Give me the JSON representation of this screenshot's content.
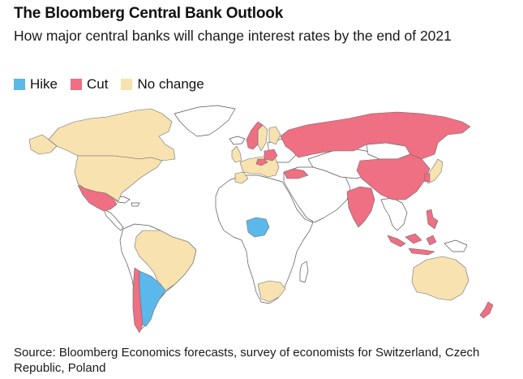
{
  "title": "The Bloomberg Central Bank Outlook",
  "subtitle": "How major central banks will change interest rates by the end of 2021",
  "legend": [
    {
      "label": "Hike",
      "color": "#5bb8ea"
    },
    {
      "label": "Cut",
      "color": "#ef6f83"
    },
    {
      "label": "No change",
      "color": "#f7e2b0"
    }
  ],
  "colors": {
    "hike": "#5bb8ea",
    "cut": "#ef6f83",
    "no_change": "#f7e2b0",
    "not_covered": "#ffffff"
  },
  "countries": {
    "hike": [
      "Argentina",
      "Nigeria"
    ],
    "cut": [
      "Mexico",
      "Chile",
      "Russia",
      "Turkey",
      "China",
      "India",
      "Indonesia",
      "Philippines",
      "South Korea",
      "New Zealand",
      "Norway",
      "Poland",
      "Czech Republic"
    ],
    "no_change": [
      "Canada",
      "United States",
      "Brazil",
      "Euro Area",
      "United Kingdom",
      "Sweden",
      "Switzerland",
      "South Africa",
      "Japan",
      "Australia"
    ]
  },
  "source": "Source: Bloomberg Economics forecasts, survey of economists for Switzerland, Czech Republic, Poland"
}
